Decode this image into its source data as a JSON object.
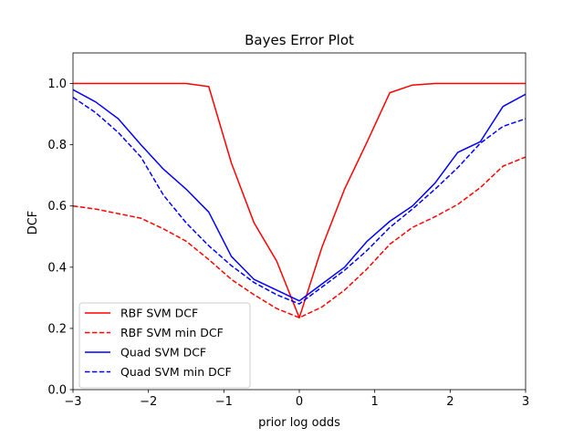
{
  "chart_data": {
    "type": "line",
    "title": "Bayes Error Plot",
    "xlabel": "prior log odds",
    "ylabel": "DCF",
    "xlim": [
      -3,
      3
    ],
    "ylim": [
      0,
      1.1
    ],
    "xticks": [
      -3,
      -2,
      -1,
      0,
      1,
      2,
      3
    ],
    "xtick_labels": [
      "−3",
      "−2",
      "−1",
      "0",
      "1",
      "2",
      "3"
    ],
    "yticks": [
      0.0,
      0.2,
      0.4,
      0.6,
      0.8,
      1.0
    ],
    "ytick_labels": [
      "0.0",
      "0.2",
      "0.4",
      "0.6",
      "0.8",
      "1.0"
    ],
    "grid": false,
    "legend_position": "lower-left",
    "series": [
      {
        "name": "RBF SVM DCF",
        "color": "#ff0000",
        "dash": "solid",
        "x": [
          -3.0,
          -2.7,
          -2.4,
          -2.1,
          -1.8,
          -1.5,
          -1.2,
          -0.9,
          -0.6,
          -0.3,
          0.0,
          0.3,
          0.6,
          0.9,
          1.2,
          1.5,
          1.8,
          2.1,
          2.4,
          2.7,
          3.0
        ],
        "y": [
          1.0,
          1.0,
          1.0,
          1.0,
          1.0,
          1.0,
          0.99,
          0.74,
          0.545,
          0.42,
          0.235,
          0.465,
          0.655,
          0.81,
          0.97,
          0.995,
          1.0,
          1.0,
          1.0,
          1.0,
          1.0
        ]
      },
      {
        "name": "RBF SVM min DCF",
        "color": "#ff0000",
        "dash": "dashed",
        "x": [
          -3.0,
          -2.7,
          -2.4,
          -2.1,
          -1.8,
          -1.5,
          -1.2,
          -0.9,
          -0.6,
          -0.3,
          0.0,
          0.3,
          0.6,
          0.9,
          1.2,
          1.5,
          1.8,
          2.1,
          2.4,
          2.7,
          3.0
        ],
        "y": [
          0.6,
          0.59,
          0.575,
          0.56,
          0.525,
          0.485,
          0.425,
          0.36,
          0.31,
          0.265,
          0.235,
          0.27,
          0.325,
          0.395,
          0.475,
          0.53,
          0.565,
          0.605,
          0.66,
          0.73,
          0.76
        ]
      },
      {
        "name": "Quad SVM DCF",
        "color": "#0000ff",
        "dash": "solid",
        "x": [
          -3.0,
          -2.7,
          -2.4,
          -2.1,
          -1.8,
          -1.5,
          -1.2,
          -0.9,
          -0.6,
          -0.3,
          0.0,
          0.3,
          0.6,
          0.9,
          1.2,
          1.5,
          1.8,
          2.1,
          2.4,
          2.7,
          3.0
        ],
        "y": [
          0.98,
          0.94,
          0.885,
          0.8,
          0.72,
          0.655,
          0.58,
          0.435,
          0.36,
          0.325,
          0.29,
          0.345,
          0.4,
          0.485,
          0.55,
          0.6,
          0.675,
          0.775,
          0.81,
          0.925,
          0.965
        ]
      },
      {
        "name": "Quad SVM min DCF",
        "color": "#0000ff",
        "dash": "dashed",
        "x": [
          -3.0,
          -2.7,
          -2.4,
          -2.1,
          -1.8,
          -1.5,
          -1.2,
          -0.9,
          -0.6,
          -0.3,
          0.0,
          0.3,
          0.6,
          0.9,
          1.2,
          1.5,
          1.8,
          2.1,
          2.4,
          2.7,
          3.0
        ],
        "y": [
          0.955,
          0.905,
          0.84,
          0.76,
          0.635,
          0.545,
          0.47,
          0.405,
          0.35,
          0.31,
          0.28,
          0.335,
          0.39,
          0.455,
          0.53,
          0.59,
          0.655,
          0.725,
          0.805,
          0.86,
          0.885
        ]
      }
    ]
  }
}
